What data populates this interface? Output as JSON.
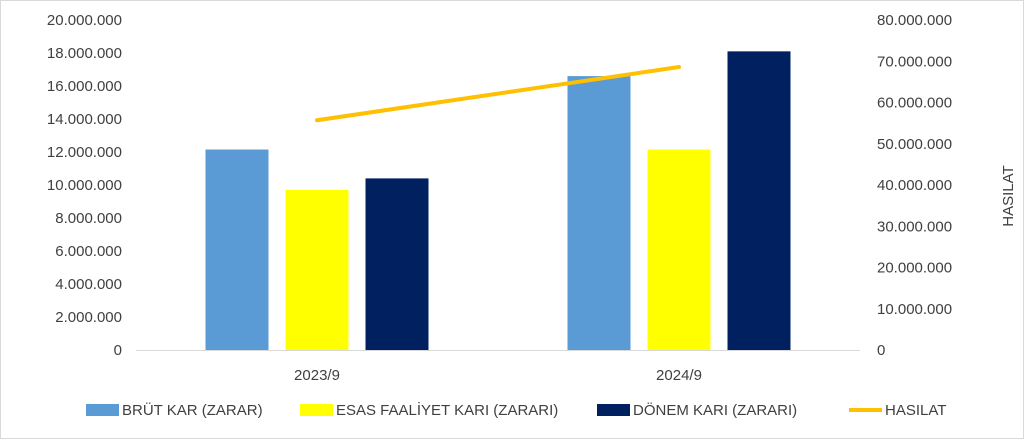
{
  "chart_data": {
    "type": "bar",
    "categories": [
      "2023/9",
      "2024/9"
    ],
    "series": [
      {
        "name": "BRÜT KAR (ZARAR)",
        "kind": "bar",
        "axis": "left",
        "color": "#5b9bd5",
        "values": [
          12150000,
          16600000
        ]
      },
      {
        "name": "ESAS FAALİYET KARI (ZARARI)",
        "kind": "bar",
        "axis": "left",
        "color": "#ffff00",
        "values": [
          9700000,
          12150000
        ]
      },
      {
        "name": "DÖNEM KARI (ZARARI)",
        "kind": "bar",
        "axis": "left",
        "color": "#002060",
        "values": [
          10400000,
          18100000
        ]
      },
      {
        "name": "HASILAT",
        "kind": "line",
        "axis": "right",
        "color": "#ffc000",
        "values": [
          55700000,
          68600000
        ]
      }
    ],
    "y_left": {
      "min": 0,
      "max": 20000000,
      "ticks": [
        "0",
        "2.000.000",
        "4.000.000",
        "6.000.000",
        "8.000.000",
        "10.000.000",
        "12.000.000",
        "14.000.000",
        "16.000.000",
        "18.000.000",
        "20.000.000"
      ]
    },
    "y_right": {
      "label": "HASILAT",
      "min": 0,
      "max": 80000000,
      "ticks": [
        "0",
        "10.000.000",
        "20.000.000",
        "30.000.000",
        "40.000.000",
        "50.000.000",
        "60.000.000",
        "70.000.000",
        "80.000.000"
      ]
    },
    "grid": false,
    "legend": "bottom"
  }
}
